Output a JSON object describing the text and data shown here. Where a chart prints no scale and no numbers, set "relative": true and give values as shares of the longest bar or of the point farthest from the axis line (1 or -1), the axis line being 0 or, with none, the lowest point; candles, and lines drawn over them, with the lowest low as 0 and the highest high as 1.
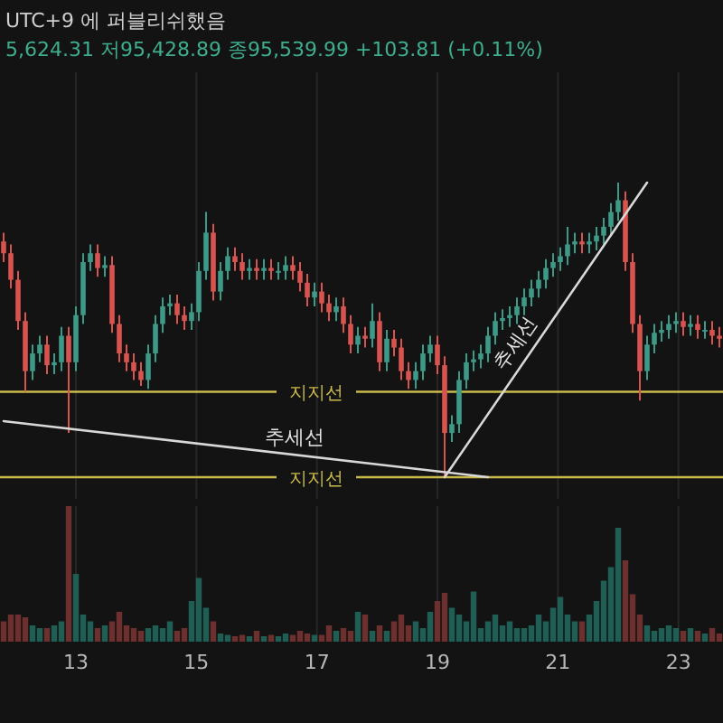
{
  "chart_data": [
    {
      "type": "candlestick",
      "title": "UTC+9 에 퍼블리쉬했음",
      "subtitle": "5,624.31 저95,428.89 종95,539.99 +103.81 (+0.11%)",
      "relative": true,
      "grid": "x",
      "tick_labels": false,
      "x": [
        11.8,
        11.92,
        12.04,
        12.16,
        12.28,
        12.4,
        12.52,
        12.64,
        12.76,
        12.88,
        13,
        13.12,
        13.24,
        13.36,
        13.48,
        13.6,
        13.72,
        13.84,
        13.96,
        14.08,
        14.2,
        14.32,
        14.44,
        14.56,
        14.68,
        14.8,
        14.92,
        15.04,
        15.16,
        15.28,
        15.4,
        15.52,
        15.64,
        15.76,
        15.88,
        16,
        16.12,
        16.24,
        16.36,
        16.48,
        16.6,
        16.72,
        16.84,
        16.96,
        17.08,
        17.2,
        17.32,
        17.44,
        17.56,
        17.68,
        17.8,
        17.92,
        18.04,
        18.16,
        18.28,
        18.4,
        18.52,
        18.64,
        18.76,
        18.88,
        19,
        19.12,
        19.24,
        19.36,
        19.48,
        19.6,
        19.72,
        19.84,
        19.96,
        20.08,
        20.2,
        20.32,
        20.44,
        20.56,
        20.68,
        20.8,
        20.92,
        21.04,
        21.16,
        21.28,
        21.4,
        21.52,
        21.64,
        21.76,
        21.88,
        22,
        22.12,
        22.24,
        22.36,
        22.48,
        22.6,
        22.72,
        22.84,
        22.96,
        23.08,
        23.2,
        23.32,
        23.44,
        23.56,
        23.68
      ],
      "ohlc": [
        [
          0.8,
          0.83,
          0.73,
          0.76
        ],
        [
          0.76,
          0.79,
          0.64,
          0.67
        ],
        [
          0.67,
          0.7,
          0.5,
          0.53
        ],
        [
          0.53,
          0.56,
          0.29,
          0.36
        ],
        [
          0.36,
          0.45,
          0.33,
          0.42
        ],
        [
          0.42,
          0.48,
          0.39,
          0.45
        ],
        [
          0.45,
          0.48,
          0.35,
          0.38
        ],
        [
          0.38,
          0.42,
          0.35,
          0.39
        ],
        [
          0.39,
          0.51,
          0.36,
          0.48
        ],
        [
          0.48,
          0.51,
          0.15,
          0.39
        ],
        [
          0.39,
          0.58,
          0.36,
          0.55
        ],
        [
          0.55,
          0.76,
          0.52,
          0.73
        ],
        [
          0.73,
          0.79,
          0.7,
          0.76
        ],
        [
          0.76,
          0.79,
          0.68,
          0.71
        ],
        [
          0.71,
          0.75,
          0.68,
          0.72
        ],
        [
          0.72,
          0.75,
          0.49,
          0.52
        ],
        [
          0.52,
          0.55,
          0.39,
          0.42
        ],
        [
          0.42,
          0.45,
          0.36,
          0.39
        ],
        [
          0.39,
          0.42,
          0.33,
          0.36
        ],
        [
          0.36,
          0.39,
          0.31,
          0.33
        ],
        [
          0.33,
          0.45,
          0.3,
          0.42
        ],
        [
          0.42,
          0.55,
          0.39,
          0.52
        ],
        [
          0.52,
          0.61,
          0.49,
          0.58
        ],
        [
          0.58,
          0.62,
          0.55,
          0.59
        ],
        [
          0.59,
          0.62,
          0.52,
          0.55
        ],
        [
          0.55,
          0.58,
          0.5,
          0.53
        ],
        [
          0.53,
          0.59,
          0.5,
          0.56
        ],
        [
          0.56,
          0.73,
          0.53,
          0.7
        ],
        [
          0.7,
          0.9,
          0.67,
          0.83
        ],
        [
          0.83,
          0.86,
          0.6,
          0.63
        ],
        [
          0.63,
          0.73,
          0.6,
          0.7
        ],
        [
          0.7,
          0.78,
          0.67,
          0.75
        ],
        [
          0.75,
          0.78,
          0.7,
          0.73
        ],
        [
          0.73,
          0.76,
          0.67,
          0.7
        ],
        [
          0.7,
          0.74,
          0.67,
          0.71
        ],
        [
          0.71,
          0.74,
          0.67,
          0.7
        ],
        [
          0.7,
          0.74,
          0.67,
          0.71
        ],
        [
          0.71,
          0.74,
          0.67,
          0.7
        ],
        [
          0.7,
          0.73,
          0.67,
          0.7
        ],
        [
          0.7,
          0.75,
          0.67,
          0.72
        ],
        [
          0.72,
          0.75,
          0.67,
          0.7
        ],
        [
          0.7,
          0.73,
          0.63,
          0.66
        ],
        [
          0.66,
          0.69,
          0.58,
          0.61
        ],
        [
          0.61,
          0.66,
          0.58,
          0.63
        ],
        [
          0.63,
          0.66,
          0.56,
          0.59
        ],
        [
          0.59,
          0.62,
          0.53,
          0.56
        ],
        [
          0.56,
          0.61,
          0.53,
          0.58
        ],
        [
          0.58,
          0.61,
          0.49,
          0.52
        ],
        [
          0.52,
          0.55,
          0.42,
          0.45
        ],
        [
          0.45,
          0.51,
          0.42,
          0.48
        ],
        [
          0.48,
          0.51,
          0.44,
          0.47
        ],
        [
          0.47,
          0.59,
          0.44,
          0.53
        ],
        [
          0.53,
          0.56,
          0.36,
          0.39
        ],
        [
          0.39,
          0.5,
          0.36,
          0.47
        ],
        [
          0.47,
          0.5,
          0.41,
          0.44
        ],
        [
          0.44,
          0.47,
          0.33,
          0.36
        ],
        [
          0.36,
          0.39,
          0.3,
          0.33
        ],
        [
          0.33,
          0.39,
          0.3,
          0.36
        ],
        [
          0.36,
          0.45,
          0.33,
          0.42
        ],
        [
          0.42,
          0.48,
          0.39,
          0.45
        ],
        [
          0.45,
          0.48,
          0.35,
          0.38
        ],
        [
          0.38,
          0.41,
          0.0,
          0.15
        ],
        [
          0.15,
          0.21,
          0.12,
          0.18
        ],
        [
          0.18,
          0.36,
          0.15,
          0.33
        ],
        [
          0.33,
          0.42,
          0.3,
          0.39
        ],
        [
          0.39,
          0.43,
          0.36,
          0.4
        ],
        [
          0.4,
          0.45,
          0.37,
          0.42
        ],
        [
          0.42,
          0.51,
          0.39,
          0.48
        ],
        [
          0.48,
          0.56,
          0.45,
          0.53
        ],
        [
          0.53,
          0.57,
          0.5,
          0.54
        ],
        [
          0.54,
          0.58,
          0.51,
          0.55
        ],
        [
          0.55,
          0.61,
          0.52,
          0.58
        ],
        [
          0.58,
          0.64,
          0.55,
          0.61
        ],
        [
          0.61,
          0.67,
          0.58,
          0.64
        ],
        [
          0.64,
          0.7,
          0.61,
          0.67
        ],
        [
          0.67,
          0.74,
          0.64,
          0.71
        ],
        [
          0.71,
          0.76,
          0.68,
          0.73
        ],
        [
          0.73,
          0.78,
          0.7,
          0.75
        ],
        [
          0.75,
          0.85,
          0.72,
          0.79
        ],
        [
          0.79,
          0.83,
          0.76,
          0.8
        ],
        [
          0.8,
          0.83,
          0.76,
          0.79
        ],
        [
          0.79,
          0.83,
          0.76,
          0.8
        ],
        [
          0.8,
          0.85,
          0.77,
          0.82
        ],
        [
          0.82,
          0.88,
          0.79,
          0.85
        ],
        [
          0.85,
          0.93,
          0.82,
          0.9
        ],
        [
          0.9,
          1.0,
          0.87,
          0.94
        ],
        [
          0.94,
          0.97,
          0.7,
          0.73
        ],
        [
          0.73,
          0.76,
          0.49,
          0.52
        ],
        [
          0.52,
          0.55,
          0.26,
          0.36
        ],
        [
          0.36,
          0.48,
          0.33,
          0.45
        ],
        [
          0.45,
          0.52,
          0.42,
          0.49
        ],
        [
          0.49,
          0.53,
          0.46,
          0.5
        ],
        [
          0.5,
          0.55,
          0.47,
          0.52
        ],
        [
          0.52,
          0.56,
          0.49,
          0.53
        ],
        [
          0.53,
          0.56,
          0.48,
          0.51
        ],
        [
          0.51,
          0.55,
          0.48,
          0.52
        ],
        [
          0.52,
          0.55,
          0.47,
          0.5
        ],
        [
          0.5,
          0.53,
          0.47,
          0.5
        ],
        [
          0.5,
          0.53,
          0.45,
          0.48
        ],
        [
          0.48,
          0.51,
          0.44,
          0.47
        ]
      ],
      "series": [
        {
          "type": "line",
          "name": "추세선",
          "color": "#d8d8d8",
          "values": [
            0.19,
            null,
            null,
            null,
            null,
            null,
            null,
            null,
            null,
            null,
            null,
            null,
            null,
            null,
            null,
            null,
            null,
            null,
            null,
            null,
            null,
            null,
            null,
            null,
            null,
            null,
            null,
            null,
            null,
            null,
            null,
            null,
            null,
            null,
            null,
            null,
            null,
            null,
            null,
            null,
            null,
            null,
            null,
            null,
            null,
            null,
            null,
            null,
            null,
            null,
            null,
            null,
            null,
            null,
            null,
            null,
            null,
            null,
            null,
            null,
            null,
            null,
            null,
            null,
            null,
            null,
            null,
            0,
            null,
            null,
            null,
            null,
            null,
            null,
            null,
            null,
            null,
            null,
            null,
            null,
            null,
            null,
            null,
            null,
            null,
            null,
            null,
            null,
            null,
            null,
            null,
            null,
            null,
            null,
            null,
            null,
            null,
            null,
            null,
            null
          ]
        },
        {
          "type": "line",
          "name": "추세선",
          "color": "#d8d8d8",
          "values": [
            null,
            null,
            null,
            null,
            null,
            null,
            null,
            null,
            null,
            null,
            null,
            null,
            null,
            null,
            null,
            null,
            null,
            null,
            null,
            null,
            null,
            null,
            null,
            null,
            null,
            null,
            null,
            null,
            null,
            null,
            null,
            null,
            null,
            null,
            null,
            null,
            null,
            null,
            null,
            null,
            null,
            null,
            null,
            null,
            null,
            null,
            null,
            null,
            null,
            null,
            null,
            null,
            null,
            null,
            null,
            null,
            null,
            null,
            null,
            null,
            null,
            0,
            null,
            null,
            null,
            null,
            null,
            null,
            null,
            null,
            null,
            null,
            null,
            null,
            null,
            null,
            null,
            null,
            null,
            null,
            null,
            null,
            null,
            null,
            null,
            null,
            null,
            null,
            null,
            1,
            null,
            null,
            null,
            null,
            null,
            null,
            null,
            null,
            null,
            null
          ]
        }
      ],
      "ref_lines": [
        {
          "axis": "y",
          "value": 0.29,
          "label": "지지선",
          "color": "#c9b94a"
        },
        {
          "axis": "y",
          "value": 0,
          "label": "지지선",
          "color": "#c9b94a"
        }
      ]
    },
    {
      "type": "bar",
      "relative": true,
      "grid": "x",
      "tick_labels": "x",
      "xlim": [
        11.74,
        23.74
      ],
      "xticks": [
        13,
        15,
        17,
        19,
        21,
        23
      ],
      "x": [
        11.8,
        11.92,
        12.04,
        12.16,
        12.28,
        12.4,
        12.52,
        12.64,
        12.76,
        12.88,
        13,
        13.12,
        13.24,
        13.36,
        13.48,
        13.6,
        13.72,
        13.84,
        13.96,
        14.08,
        14.2,
        14.32,
        14.44,
        14.56,
        14.68,
        14.8,
        14.92,
        15.04,
        15.16,
        15.28,
        15.4,
        15.52,
        15.64,
        15.76,
        15.88,
        16,
        16.12,
        16.24,
        16.36,
        16.48,
        16.6,
        16.72,
        16.84,
        16.96,
        17.08,
        17.2,
        17.32,
        17.44,
        17.56,
        17.68,
        17.8,
        17.92,
        18.04,
        18.16,
        18.28,
        18.4,
        18.52,
        18.64,
        18.76,
        18.88,
        19,
        19.12,
        19.24,
        19.36,
        19.48,
        19.6,
        19.72,
        19.84,
        19.96,
        20.08,
        20.2,
        20.32,
        20.44,
        20.56,
        20.68,
        20.8,
        20.92,
        21.04,
        21.16,
        21.28,
        21.4,
        21.52,
        21.64,
        21.76,
        21.88,
        22,
        22.12,
        22.24,
        22.36,
        22.48,
        22.6,
        22.72,
        22.84,
        22.96,
        23.08,
        23.2,
        23.32,
        23.44,
        23.56,
        23.68
      ],
      "values": [
        0.15,
        0.2,
        0.2,
        0.18,
        0.12,
        0.1,
        0.1,
        0.12,
        0.15,
        1,
        0.5,
        0.2,
        0.15,
        0.1,
        0.12,
        0.15,
        0.22,
        0.12,
        0.1,
        0.08,
        0.1,
        0.12,
        0.1,
        0.15,
        0.08,
        0.1,
        0.3,
        0.47,
        0.25,
        0.15,
        0.06,
        0.05,
        0.04,
        0.05,
        0.04,
        0.08,
        0.04,
        0.05,
        0.04,
        0.06,
        0.05,
        0.08,
        0.06,
        0.05,
        0.05,
        0.12,
        0.08,
        0.1,
        0.08,
        0.22,
        0.2,
        0.08,
        0.12,
        0.08,
        0.15,
        0.2,
        0.12,
        0.15,
        0.1,
        0.22,
        0.3,
        0.36,
        0.25,
        0.2,
        0.15,
        0.37,
        0.1,
        0.15,
        0.2,
        0.12,
        0.15,
        0.1,
        0.1,
        0.12,
        0.2,
        0.15,
        0.25,
        0.33,
        0.2,
        0.15,
        0.15,
        0.2,
        0.3,
        0.45,
        0.55,
        0.84,
        0.6,
        0.35,
        0.2,
        0.12,
        0.08,
        0.1,
        0.12,
        0.1,
        0.08,
        0.1,
        0.08,
        0.06,
        0.1,
        0.06
      ],
      "colors": [
        "#6e2f2f",
        "#6e2f2f",
        "#6e2f2f",
        "#6e2f2f",
        "#1f5e55",
        "#1f5e55",
        "#6e2f2f",
        "#1f5e55",
        "#1f5e55",
        "#6e2f2f",
        "#1f5e55",
        "#1f5e55",
        "#1f5e55",
        "#6e2f2f",
        "#1f5e55",
        "#6e2f2f",
        "#6e2f2f",
        "#6e2f2f",
        "#6e2f2f",
        "#6e2f2f",
        "#1f5e55",
        "#1f5e55",
        "#1f5e55",
        "#1f5e55",
        "#6e2f2f",
        "#6e2f2f",
        "#1f5e55",
        "#1f5e55",
        "#1f5e55",
        "#6e2f2f",
        "#1f5e55",
        "#1f5e55",
        "#6e2f2f",
        "#6e2f2f",
        "#1f5e55",
        "#6e2f2f",
        "#1f5e55",
        "#6e2f2f",
        "#1f5e55",
        "#1f5e55",
        "#6e2f2f",
        "#6e2f2f",
        "#6e2f2f",
        "#1f5e55",
        "#6e2f2f",
        "#6e2f2f",
        "#1f5e55",
        "#6e2f2f",
        "#6e2f2f",
        "#1f5e55",
        "#6e2f2f",
        "#1f5e55",
        "#6e2f2f",
        "#1f5e55",
        "#6e2f2f",
        "#6e2f2f",
        "#6e2f2f",
        "#1f5e55",
        "#1f5e55",
        "#1f5e55",
        "#6e2f2f",
        "#6e2f2f",
        "#1f5e55",
        "#1f5e55",
        "#1f5e55",
        "#1f5e55",
        "#1f5e55",
        "#1f5e55",
        "#1f5e55",
        "#1f5e55",
        "#1f5e55",
        "#1f5e55",
        "#1f5e55",
        "#1f5e55",
        "#1f5e55",
        "#1f5e55",
        "#1f5e55",
        "#1f5e55",
        "#1f5e55",
        "#1f5e55",
        "#6e2f2f",
        "#1f5e55",
        "#1f5e55",
        "#1f5e55",
        "#1f5e55",
        "#1f5e55",
        "#6e2f2f",
        "#6e2f2f",
        "#6e2f2f",
        "#1f5e55",
        "#1f5e55",
        "#1f5e55",
        "#1f5e55",
        "#1f5e55",
        "#6e2f2f",
        "#1f5e55",
        "#6e2f2f",
        "#1f5e55",
        "#6e2f2f",
        "#6e2f2f"
      ]
    }
  ]
}
